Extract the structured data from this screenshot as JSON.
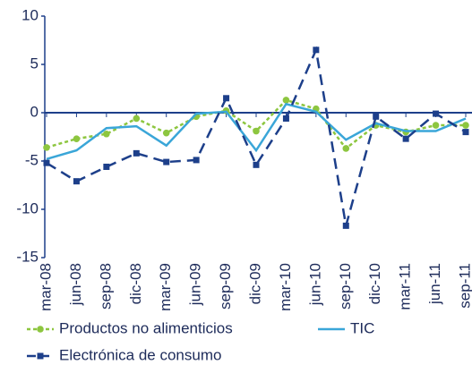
{
  "chart_data": {
    "type": "line",
    "categories": [
      "mar-08",
      "jun-08",
      "sep-08",
      "dic-08",
      "mar-09",
      "jun-09",
      "sep-09",
      "dic-09",
      "mar-10",
      "jun-10",
      "sep-10",
      "dic-10",
      "mar-11",
      "jun-11",
      "sep-11"
    ],
    "series": [
      {
        "name": "Productos no alimenticios",
        "color": "#8dc63f",
        "dash": "dotted",
        "marker": "circle",
        "values": [
          -3.6,
          -2.7,
          -2.2,
          -0.6,
          -2.1,
          -0.4,
          0.2,
          -1.9,
          1.3,
          0.4,
          -3.7,
          -1.3,
          -2.0,
          -1.3,
          -1.3
        ]
      },
      {
        "name": "TIC",
        "color": "#3aa6d8",
        "dash": "solid",
        "marker": "none",
        "values": [
          -4.8,
          -3.9,
          -1.6,
          -1.4,
          -3.4,
          -0.1,
          0.1,
          -3.9,
          0.9,
          0.1,
          -2.8,
          -1.1,
          -1.9,
          -1.9,
          -0.6
        ]
      },
      {
        "name": "Electrónica de consumo",
        "color": "#1d3f8a",
        "dash": "dashed",
        "marker": "square",
        "values": [
          -5.2,
          -7.1,
          -5.6,
          -4.2,
          -5.1,
          -4.9,
          1.5,
          -5.4,
          -0.6,
          6.5,
          -11.7,
          -0.4,
          -2.7,
          -0.1,
          -2.0
        ]
      }
    ],
    "ylim": [
      -15,
      10
    ],
    "yticks": [
      10,
      5,
      0,
      -5,
      -10,
      -15
    ],
    "grid": false,
    "legend": "bottom"
  }
}
